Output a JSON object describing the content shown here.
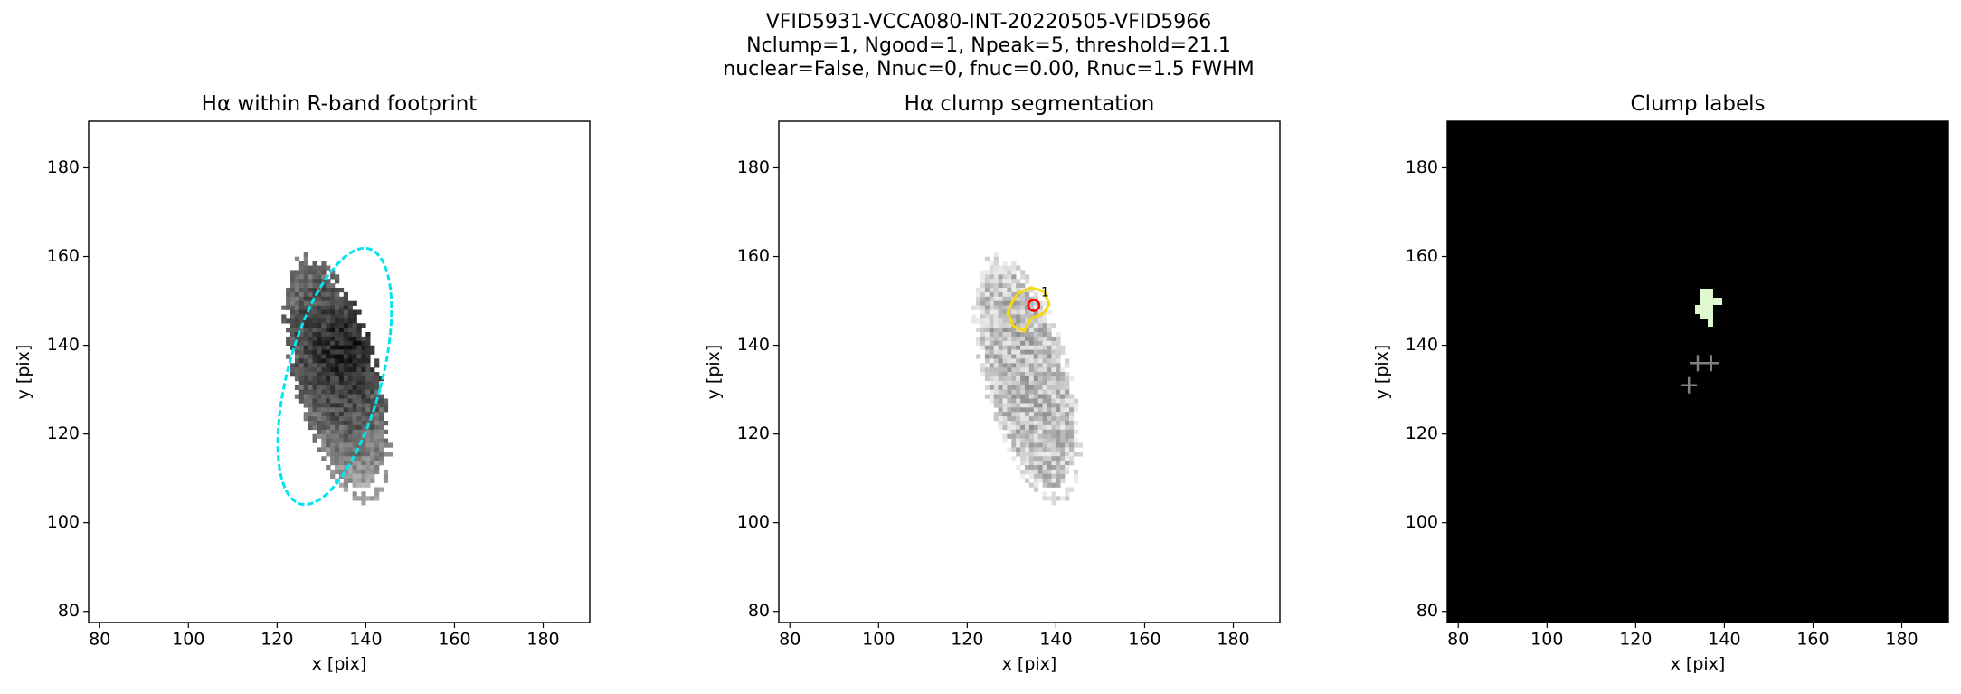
{
  "suptitle": [
    "VFID5931-VCCA080-INT-20220505-VFID5966",
    "Nclump=1, Ngood=1, Npeak=5, threshold=21.1",
    "nuclear=False, Nnuc=0, fnuc=0.00, Rnuc=1.5 FWHM"
  ],
  "chart_data": [
    {
      "type": "image",
      "title": "Hα within R-band footprint",
      "x_label": "x [pix]",
      "y_label": "y [pix]",
      "xlim": [
        77.5,
        190.5
      ],
      "ylim": [
        77.5,
        190.5
      ],
      "xticks": [
        80,
        100,
        120,
        140,
        160,
        180
      ],
      "yticks": [
        80,
        100,
        120,
        140,
        160,
        180
      ]
    },
    {
      "type": "image",
      "title": "Hα clump segmentation",
      "x_label": "x [pix]",
      "y_label": "y [pix]",
      "xlim": [
        77.5,
        190.5
      ],
      "ylim": [
        77.5,
        190.5
      ],
      "xticks": [
        80,
        100,
        120,
        140,
        160,
        180
      ],
      "yticks": [
        80,
        100,
        120,
        140,
        160,
        180
      ],
      "points": {
        "marker": "circle",
        "color": "#ff0000",
        "x": [
          135
        ],
        "y": [
          149
        ],
        "labels": [
          "1"
        ]
      }
    },
    {
      "type": "image",
      "title": "Clump labels",
      "x_label": "x [pix]",
      "y_label": "y [pix]",
      "xlim": [
        77.5,
        190.5
      ],
      "ylim": [
        77.5,
        190.5
      ],
      "xticks": [
        80,
        100,
        120,
        140,
        160,
        180
      ],
      "yticks": [
        80,
        100,
        120,
        140,
        160,
        180
      ],
      "points": {
        "marker": "plus",
        "color": "#808080",
        "x": [
          134,
          137,
          132
        ],
        "y": [
          136,
          136,
          131
        ]
      }
    }
  ]
}
